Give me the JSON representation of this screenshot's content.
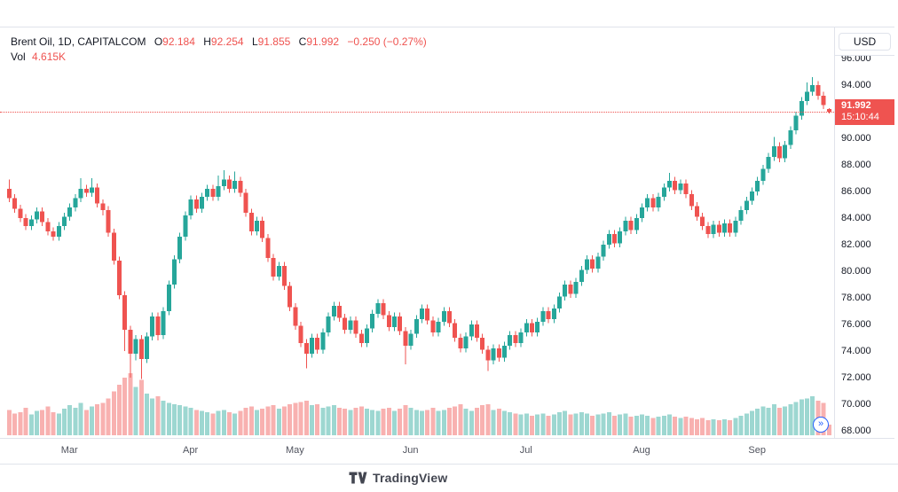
{
  "header": {
    "symbol": "Brent Oil, 1D, CAPITALCOM",
    "ohlc": {
      "o_label": "O",
      "o_value": "92.184",
      "h_label": "H",
      "h_value": "92.254",
      "l_label": "L",
      "l_value": "91.855",
      "c_label": "C",
      "c_value": "91.992",
      "change": "−0.250 (−0.27%)"
    },
    "volume": {
      "label": "Vol",
      "value": "4.615K"
    },
    "currency_button": "USD"
  },
  "price_scale": {
    "last_price_label": "91.992",
    "countdown": "15:10:44"
  },
  "footer": {
    "brand": "TradingView"
  },
  "icons": {
    "scroll_to_realtime": "»"
  },
  "colors": {
    "up": "#26a69a",
    "down": "#ef5350",
    "text": "#131722",
    "muted": "#50535e",
    "border": "#e0e3eb",
    "accent_blue": "#2962ff"
  },
  "chart_data": {
    "type": "candlestick",
    "title": "Brent Oil, 1D, CAPITALCOM",
    "interval": "1D",
    "currency": "USD",
    "legend_ohlc": {
      "open": 92.184,
      "high": 92.254,
      "low": 91.855,
      "close": 91.992,
      "change": -0.25,
      "change_pct": -0.27
    },
    "last_price": 91.992,
    "last_volume_k": 4.615,
    "y_ticks": [
      68,
      70,
      72,
      74,
      76,
      78,
      80,
      82,
      84,
      86,
      88,
      90,
      92,
      94,
      96
    ],
    "y_range": [
      67.8,
      96.8
    ],
    "grid": false,
    "legend_position": "top-left",
    "x_axis_labels": [
      "Mar",
      "Apr",
      "May",
      "Jun",
      "Jul",
      "Aug",
      "Sep"
    ],
    "month_ticks": [
      {
        "label": "Mar",
        "i": 11
      },
      {
        "label": "Apr",
        "i": 33
      },
      {
        "label": "May",
        "i": 52
      },
      {
        "label": "Jun",
        "i": 73
      },
      {
        "label": "Jul",
        "i": 94
      },
      {
        "label": "Aug",
        "i": 115
      },
      {
        "label": "Sep",
        "i": 136
      }
    ],
    "candles_format": [
      "open",
      "high",
      "low",
      "close",
      "volume_thousands"
    ],
    "candles": [
      [
        86.2,
        86.9,
        85.2,
        85.5,
        11
      ],
      [
        85.5,
        85.8,
        84.4,
        84.7,
        9.5
      ],
      [
        84.7,
        85.0,
        83.7,
        84.0,
        10
      ],
      [
        84.0,
        84.3,
        83.1,
        83.4,
        12
      ],
      [
        83.4,
        84.2,
        83.1,
        83.9,
        9
      ],
      [
        83.9,
        84.8,
        83.6,
        84.5,
        10.5
      ],
      [
        84.5,
        84.8,
        83.4,
        83.7,
        11
      ],
      [
        83.7,
        84.0,
        82.7,
        83.0,
        12.5
      ],
      [
        83.0,
        83.3,
        82.3,
        82.6,
        10
      ],
      [
        82.6,
        83.7,
        82.3,
        83.4,
        9.5
      ],
      [
        83.4,
        84.4,
        83.1,
        84.1,
        11.5
      ],
      [
        84.1,
        85.1,
        83.8,
        84.8,
        13
      ],
      [
        84.8,
        85.8,
        84.5,
        85.5,
        12
      ],
      [
        85.5,
        87.0,
        85.2,
        86.2,
        14
      ],
      [
        86.2,
        86.5,
        85.6,
        85.9,
        11
      ],
      [
        85.9,
        87.0,
        85.6,
        86.3,
        12.5
      ],
      [
        86.3,
        86.6,
        84.8,
        85.1,
        13.5
      ],
      [
        85.1,
        85.4,
        84.2,
        84.6,
        14
      ],
      [
        84.6,
        84.9,
        82.6,
        82.9,
        16
      ],
      [
        82.9,
        83.2,
        80.5,
        80.8,
        19
      ],
      [
        80.8,
        81.1,
        77.9,
        78.2,
        22
      ],
      [
        78.2,
        78.5,
        74.0,
        75.6,
        25
      ],
      [
        75.6,
        75.9,
        72.0,
        73.8,
        27
      ],
      [
        73.8,
        75.2,
        73.3,
        74.9,
        21
      ],
      [
        74.9,
        75.2,
        71.9,
        73.4,
        24
      ],
      [
        73.4,
        75.4,
        73.1,
        75.1,
        18
      ],
      [
        75.1,
        76.9,
        74.8,
        76.6,
        16
      ],
      [
        76.6,
        76.9,
        74.8,
        75.2,
        17
      ],
      [
        75.2,
        77.3,
        74.9,
        77.0,
        15
      ],
      [
        77.0,
        79.3,
        76.7,
        79.0,
        14
      ],
      [
        79.0,
        81.2,
        78.7,
        80.9,
        13.5
      ],
      [
        80.9,
        82.9,
        80.6,
        82.6,
        13
      ],
      [
        82.6,
        84.5,
        82.3,
        84.2,
        12.5
      ],
      [
        84.2,
        85.7,
        83.9,
        85.4,
        12
      ],
      [
        85.4,
        85.7,
        84.4,
        84.7,
        11
      ],
      [
        84.7,
        85.9,
        84.4,
        85.6,
        10.5
      ],
      [
        85.6,
        86.5,
        85.3,
        86.2,
        10
      ],
      [
        86.2,
        86.5,
        85.3,
        85.6,
        9.5
      ],
      [
        85.6,
        87.2,
        85.3,
        86.4,
        10.5
      ],
      [
        86.4,
        87.6,
        86.1,
        86.9,
        11
      ],
      [
        86.9,
        87.2,
        85.9,
        86.2,
        10
      ],
      [
        86.2,
        87.5,
        85.9,
        86.8,
        9.5
      ],
      [
        86.8,
        87.1,
        85.6,
        85.9,
        10.5
      ],
      [
        85.9,
        86.2,
        84.1,
        84.4,
        12
      ],
      [
        84.4,
        84.7,
        82.7,
        83.0,
        12.5
      ],
      [
        83.0,
        84.1,
        82.7,
        83.8,
        11
      ],
      [
        83.8,
        84.1,
        82.2,
        82.5,
        11.5
      ],
      [
        82.5,
        82.8,
        80.7,
        81.0,
        12.5
      ],
      [
        81.0,
        81.3,
        79.3,
        79.6,
        13
      ],
      [
        79.6,
        80.7,
        79.3,
        80.4,
        11.5
      ],
      [
        80.4,
        80.7,
        78.6,
        78.9,
        12.5
      ],
      [
        78.9,
        79.2,
        77.0,
        77.3,
        13.5
      ],
      [
        77.3,
        77.6,
        75.6,
        75.9,
        14
      ],
      [
        75.9,
        76.2,
        74.3,
        74.6,
        14.5
      ],
      [
        74.6,
        74.9,
        72.7,
        73.8,
        15
      ],
      [
        73.8,
        75.3,
        73.5,
        75.0,
        13
      ],
      [
        75.0,
        75.3,
        73.8,
        74.1,
        13.5
      ],
      [
        74.1,
        75.7,
        73.8,
        75.4,
        12
      ],
      [
        75.4,
        76.9,
        75.1,
        76.6,
        12.5
      ],
      [
        76.6,
        77.7,
        76.3,
        77.4,
        13
      ],
      [
        77.4,
        77.7,
        76.2,
        76.5,
        12
      ],
      [
        76.5,
        76.8,
        75.3,
        75.6,
        11.5
      ],
      [
        75.6,
        76.6,
        75.3,
        76.3,
        11
      ],
      [
        76.3,
        76.6,
        75.0,
        75.3,
        12
      ],
      [
        75.3,
        75.6,
        74.3,
        74.6,
        12.5
      ],
      [
        74.6,
        76.0,
        74.3,
        75.7,
        11.5
      ],
      [
        75.7,
        77.1,
        75.4,
        76.8,
        11
      ],
      [
        76.8,
        77.9,
        76.5,
        77.6,
        10.5
      ],
      [
        77.6,
        77.9,
        76.4,
        76.7,
        11.5
      ],
      [
        76.7,
        77.0,
        75.5,
        75.8,
        12
      ],
      [
        75.8,
        76.9,
        75.5,
        76.6,
        10.5
      ],
      [
        76.6,
        76.9,
        75.2,
        75.5,
        11.5
      ],
      [
        75.5,
        75.8,
        73.0,
        74.4,
        13
      ],
      [
        74.4,
        75.6,
        74.1,
        75.3,
        12
      ],
      [
        75.3,
        76.7,
        75.0,
        76.4,
        11
      ],
      [
        76.4,
        77.5,
        76.1,
        77.2,
        10.5
      ],
      [
        77.2,
        77.5,
        76.0,
        76.3,
        11
      ],
      [
        76.3,
        76.6,
        75.1,
        75.4,
        12
      ],
      [
        75.4,
        76.5,
        75.1,
        76.2,
        10.5
      ],
      [
        76.2,
        77.3,
        75.9,
        77.0,
        11
      ],
      [
        77.0,
        77.3,
        75.8,
        76.1,
        12
      ],
      [
        76.1,
        76.4,
        74.7,
        75.0,
        12.5
      ],
      [
        75.0,
        75.3,
        73.9,
        74.2,
        13.5
      ],
      [
        74.2,
        75.4,
        73.9,
        75.1,
        11.5
      ],
      [
        75.1,
        76.3,
        74.8,
        76.0,
        10.5
      ],
      [
        76.0,
        76.3,
        74.7,
        75.0,
        12
      ],
      [
        75.0,
        75.3,
        73.8,
        74.1,
        13
      ],
      [
        74.1,
        74.4,
        72.5,
        73.3,
        13.5
      ],
      [
        73.3,
        74.5,
        73.0,
        74.2,
        11
      ],
      [
        74.2,
        74.5,
        73.2,
        73.5,
        11.5
      ],
      [
        73.5,
        74.7,
        73.2,
        74.4,
        10.5
      ],
      [
        74.4,
        75.5,
        74.1,
        75.2,
        10
      ],
      [
        75.2,
        75.5,
        74.3,
        74.6,
        9.5
      ],
      [
        74.6,
        75.7,
        74.3,
        75.4,
        9
      ],
      [
        75.4,
        76.4,
        75.1,
        76.1,
        9.5
      ],
      [
        76.1,
        76.4,
        75.1,
        75.4,
        8.5
      ],
      [
        75.4,
        76.5,
        75.1,
        76.2,
        9
      ],
      [
        76.2,
        77.3,
        75.9,
        77.0,
        9.5
      ],
      [
        77.0,
        77.3,
        76.1,
        76.4,
        8.5
      ],
      [
        76.4,
        77.5,
        76.1,
        77.2,
        9
      ],
      [
        77.2,
        78.4,
        76.9,
        78.1,
        10
      ],
      [
        78.1,
        79.3,
        77.8,
        79.0,
        10.5
      ],
      [
        79.0,
        79.3,
        78.0,
        78.3,
        9
      ],
      [
        78.3,
        79.5,
        78.0,
        79.2,
        9.5
      ],
      [
        79.2,
        80.4,
        78.9,
        80.1,
        10
      ],
      [
        80.1,
        81.2,
        79.8,
        80.9,
        9.5
      ],
      [
        80.9,
        81.2,
        79.9,
        80.2,
        8.5
      ],
      [
        80.2,
        81.4,
        79.9,
        81.1,
        9
      ],
      [
        81.1,
        82.3,
        80.8,
        82.0,
        9.5
      ],
      [
        82.0,
        83.1,
        81.7,
        82.8,
        10
      ],
      [
        82.8,
        83.1,
        81.8,
        82.1,
        8.5
      ],
      [
        82.1,
        83.3,
        81.8,
        83.0,
        9
      ],
      [
        83.0,
        84.1,
        82.7,
        83.8,
        9.5
      ],
      [
        83.8,
        84.1,
        82.8,
        83.1,
        8
      ],
      [
        83.1,
        84.3,
        82.8,
        84.0,
        8.5
      ],
      [
        84.0,
        85.1,
        83.7,
        84.8,
        9
      ],
      [
        84.8,
        85.8,
        84.5,
        85.5,
        8.5
      ],
      [
        85.5,
        85.8,
        84.5,
        84.8,
        7.5
      ],
      [
        84.8,
        85.9,
        84.5,
        85.6,
        8
      ],
      [
        85.6,
        86.6,
        85.3,
        86.3,
        8.5
      ],
      [
        86.3,
        87.4,
        86.0,
        86.8,
        9
      ],
      [
        86.8,
        87.1,
        85.8,
        86.1,
        8
      ],
      [
        86.1,
        86.9,
        85.8,
        86.6,
        7.5
      ],
      [
        86.6,
        86.9,
        85.5,
        85.8,
        8
      ],
      [
        85.8,
        86.1,
        84.6,
        84.9,
        7.5
      ],
      [
        84.9,
        85.2,
        83.8,
        84.1,
        7
      ],
      [
        84.1,
        84.4,
        83.1,
        83.4,
        7.5
      ],
      [
        83.4,
        83.7,
        82.5,
        82.8,
        6.5
      ],
      [
        82.8,
        83.8,
        82.5,
        83.5,
        7
      ],
      [
        83.5,
        83.8,
        82.6,
        82.9,
        6.5
      ],
      [
        82.9,
        83.9,
        82.6,
        83.6,
        7
      ],
      [
        83.6,
        83.9,
        82.6,
        82.9,
        6.5
      ],
      [
        82.9,
        84.1,
        82.6,
        83.8,
        7.5
      ],
      [
        83.8,
        84.9,
        83.5,
        84.6,
        8.5
      ],
      [
        84.6,
        85.6,
        84.3,
        85.3,
        9.5
      ],
      [
        85.3,
        86.3,
        85.0,
        86.0,
        10.5
      ],
      [
        86.0,
        87.1,
        85.7,
        86.8,
        11.5
      ],
      [
        86.8,
        88.0,
        86.5,
        87.7,
        12.5
      ],
      [
        87.7,
        88.9,
        87.4,
        88.6,
        12
      ],
      [
        88.6,
        90.1,
        88.3,
        89.4,
        13.5
      ],
      [
        89.4,
        89.7,
        88.2,
        88.5,
        12
      ],
      [
        88.5,
        89.8,
        88.2,
        89.5,
        12.5
      ],
      [
        89.5,
        90.9,
        89.2,
        90.6,
        13.5
      ],
      [
        90.6,
        92.0,
        90.3,
        91.7,
        14.5
      ],
      [
        91.7,
        93.1,
        91.4,
        92.8,
        15.5
      ],
      [
        92.8,
        94.2,
        92.5,
        93.5,
        16
      ],
      [
        93.5,
        94.6,
        93.2,
        94.0,
        17
      ],
      [
        94.0,
        94.3,
        92.9,
        93.2,
        15
      ],
      [
        93.2,
        93.5,
        92.2,
        92.5,
        14
      ],
      [
        92.184,
        92.254,
        91.855,
        91.992,
        4.615
      ]
    ]
  }
}
